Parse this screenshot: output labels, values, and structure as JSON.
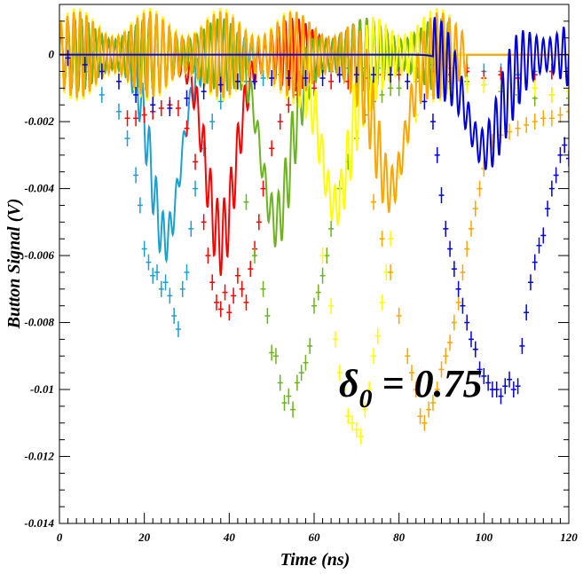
{
  "chart_data": {
    "type": "line",
    "xlabel": "Time (ns)",
    "ylabel": "Button Signal (V)",
    "xlim": [
      0,
      120
    ],
    "ylim": [
      -0.014,
      0.0015
    ],
    "x_ticks": [
      0,
      20,
      40,
      60,
      80,
      100,
      120
    ],
    "x_tick_labels": [
      "0",
      "20",
      "40",
      "60",
      "80",
      "100",
      "120"
    ],
    "y_ticks": [
      0,
      -0.002,
      -0.004,
      -0.006,
      -0.008,
      -0.01,
      -0.012,
      -0.014
    ],
    "y_tick_labels": [
      "0",
      "-0.002",
      "-0.004",
      "-0.006",
      "-0.008",
      "-0.01",
      "-0.012",
      "-0.014"
    ],
    "annotation": {
      "symbol": "δ",
      "subscript": "0",
      "rest": " = 0.75"
    },
    "series": [
      {
        "color": "#1f9fce",
        "measured": {
          "x": [
            6,
            10,
            14,
            16,
            18,
            19,
            20,
            21,
            22,
            23,
            24,
            25,
            26,
            27,
            28,
            29,
            30,
            31,
            32,
            34,
            36,
            38,
            40,
            44,
            48,
            52,
            56,
            60,
            64,
            68,
            72,
            76,
            80,
            84,
            88,
            92,
            96,
            100,
            104,
            108,
            112,
            116,
            120
          ],
          "y": [
            -0.0005,
            -0.0012,
            -0.0017,
            -0.0025,
            -0.0036,
            -0.0045,
            -0.0058,
            -0.0062,
            -0.0066,
            -0.0065,
            -0.007,
            -0.0068,
            -0.0072,
            -0.0078,
            -0.0082,
            -0.007,
            -0.0065,
            -0.0052,
            -0.004,
            -0.0028,
            -0.002,
            -0.0014,
            -0.001,
            -0.0008,
            -0.0007,
            -0.0006,
            -0.0006,
            -0.0005,
            -0.0005,
            -0.0004,
            -0.0004,
            -0.0004,
            -0.0004,
            -0.0004,
            -0.0003,
            -0.0004,
            -0.0004,
            -0.0005,
            -0.0005,
            -0.0006,
            -0.0005,
            -0.0005,
            -0.0004
          ]
        },
        "sim": {
          "dip_center": 25,
          "dip_depth": -0.0055,
          "dip_width": 5,
          "osc_start": 0,
          "osc_end": 48,
          "osc_amp": 0.0009,
          "osc_period": 1.6
        }
      },
      {
        "color": "#ff0000",
        "measured": {
          "x": [
            16,
            18,
            20,
            22,
            24,
            26,
            28,
            30,
            32,
            34,
            35,
            36,
            37,
            38,
            39,
            40,
            41,
            42,
            43,
            44,
            45,
            46,
            47,
            48,
            50,
            52,
            54,
            56,
            60,
            64,
            68,
            72,
            76,
            80,
            84,
            88,
            92,
            96,
            100,
            104,
            108,
            112,
            116,
            120
          ],
          "y": [
            -0.0019,
            -0.0019,
            -0.0018,
            -0.0017,
            -0.0016,
            -0.0015,
            -0.0016,
            -0.0022,
            -0.0032,
            -0.005,
            -0.006,
            -0.0068,
            -0.0074,
            -0.0076,
            -0.0071,
            -0.0077,
            -0.0072,
            -0.0066,
            -0.007,
            -0.0074,
            -0.0064,
            -0.0058,
            -0.005,
            -0.004,
            -0.0028,
            -0.002,
            -0.0015,
            -0.0012,
            -0.001,
            -0.0008,
            -0.0008,
            -0.0007,
            -0.0006,
            -0.0006,
            -0.0006,
            -0.0005,
            -0.0006,
            -0.0005,
            -0.0007,
            -0.0006,
            -0.0007,
            -0.0006,
            -0.0005,
            -0.0007
          ]
        },
        "sim": {
          "dip_center": 38,
          "dip_depth": -0.0055,
          "dip_width": 5,
          "osc_start": 0,
          "osc_end": 92,
          "osc_amp": 0.0011,
          "osc_period": 1.6
        }
      },
      {
        "color": "#6cb31f",
        "measured": {
          "x": [
            44,
            46,
            48,
            49,
            50,
            51,
            52,
            53,
            54,
            55,
            56,
            57,
            58,
            59,
            60,
            61,
            62,
            63,
            64,
            66,
            68,
            70,
            72,
            74,
            76,
            78,
            80,
            84,
            88,
            92,
            96,
            100,
            104,
            108,
            112,
            116,
            120
          ],
          "y": [
            -0.0044,
            -0.006,
            -0.007,
            -0.0078,
            -0.0089,
            -0.009,
            -0.0098,
            -0.0104,
            -0.0102,
            -0.0106,
            -0.0098,
            -0.0095,
            -0.0092,
            -0.0087,
            -0.0075,
            -0.0071,
            -0.0066,
            -0.006,
            -0.0052,
            -0.004,
            -0.0032,
            -0.0025,
            -0.0018,
            -0.0014,
            -0.0012,
            -0.001,
            -0.001,
            -0.0008,
            -0.0008,
            -0.0008,
            -0.0008,
            -0.0009,
            -0.0011,
            -0.0012,
            -0.0013,
            -0.0012,
            -0.0013
          ]
        },
        "sim": {
          "dip_center": 51,
          "dip_depth": -0.005,
          "dip_width": 5,
          "osc_start": 0,
          "osc_end": 92,
          "osc_amp": 0.0011,
          "osc_period": 1.6
        }
      },
      {
        "color": "#ffff00",
        "measured": {
          "x": [
            62,
            64,
            65,
            66,
            67,
            68,
            69,
            70,
            71,
            72,
            73,
            74,
            75,
            76,
            77,
            78,
            79,
            80,
            82,
            84,
            86,
            88,
            90,
            92,
            96,
            100,
            104,
            108,
            112,
            116,
            120
          ],
          "y": [
            -0.006,
            -0.0075,
            -0.0085,
            -0.0095,
            -0.01,
            -0.0108,
            -0.011,
            -0.0112,
            -0.0114,
            -0.0106,
            -0.01,
            -0.009,
            -0.0084,
            -0.0074,
            -0.0065,
            -0.0055,
            -0.0042,
            -0.0035,
            -0.0025,
            -0.0018,
            -0.0014,
            -0.0012,
            -0.001,
            -0.001,
            -0.0009,
            -0.0009,
            -0.001,
            -0.001,
            -0.001,
            -0.0012,
            -0.0011
          ]
        },
        "sim": {
          "dip_center": 65,
          "dip_depth": -0.0045,
          "dip_width": 5,
          "osc_start": 0,
          "osc_end": 92,
          "osc_amp": 0.0014,
          "osc_period": 1.5
        }
      },
      {
        "color": "#ffa500",
        "measured": {
          "x": [
            74,
            76,
            78,
            80,
            82,
            83,
            84,
            85,
            86,
            87,
            88,
            89,
            90,
            91,
            92,
            93,
            94,
            95,
            96,
            97,
            98,
            99,
            100,
            102,
            104,
            106,
            108,
            110,
            112,
            114,
            116,
            118,
            120
          ],
          "y": [
            -0.0044,
            -0.0055,
            -0.0065,
            -0.0078,
            -0.009,
            -0.0095,
            -0.01,
            -0.0108,
            -0.011,
            -0.0106,
            -0.0104,
            -0.01,
            -0.0094,
            -0.009,
            -0.0086,
            -0.008,
            -0.0074,
            -0.0065,
            -0.0058,
            -0.0052,
            -0.0046,
            -0.004,
            -0.0034,
            -0.0026,
            -0.0024,
            -0.0023,
            -0.0022,
            -0.0021,
            -0.002,
            -0.0019,
            -0.0019,
            -0.0018,
            -0.0017
          ]
        },
        "sim": {
          "dip_center": 78,
          "dip_depth": -0.004,
          "dip_width": 5,
          "osc_start": 0,
          "osc_end": 96,
          "osc_amp": 0.0013,
          "osc_period": 1.5
        }
      },
      {
        "color": "#0000dd",
        "measured": {
          "x": [
            2,
            6,
            10,
            14,
            18,
            22,
            26,
            30,
            34,
            38,
            42,
            46,
            50,
            54,
            58,
            62,
            66,
            70,
            74,
            78,
            82,
            86,
            88,
            89,
            90,
            91,
            92,
            93,
            94,
            95,
            96,
            97,
            98,
            99,
            100,
            101,
            102,
            103,
            104,
            105,
            106,
            107,
            108,
            109,
            110,
            111,
            112,
            113,
            114,
            115,
            116,
            117,
            118,
            119,
            120
          ],
          "y": [
            -0.0001,
            -0.0003,
            -0.0005,
            -0.0008,
            -0.0012,
            -0.0015,
            -0.0016,
            -0.0013,
            -0.0011,
            -0.0009,
            -0.0008,
            -0.0008,
            -0.0007,
            -0.0007,
            -0.0007,
            -0.0007,
            -0.0006,
            -0.0006,
            -0.0006,
            -0.0006,
            -0.0008,
            -0.0014,
            -0.002,
            -0.003,
            -0.0042,
            -0.0052,
            -0.0058,
            -0.0064,
            -0.007,
            -0.0075,
            -0.008,
            -0.0085,
            -0.0088,
            -0.0094,
            -0.0096,
            -0.0098,
            -0.01,
            -0.01,
            -0.0102,
            -0.0099,
            -0.0097,
            -0.01,
            -0.0099,
            -0.0087,
            -0.0077,
            -0.0068,
            -0.0062,
            -0.0057,
            -0.0054,
            -0.0046,
            -0.004,
            -0.0036,
            -0.003,
            -0.0027,
            -0.0031
          ]
        },
        "sim": {
          "dip_center": 100,
          "dip_depth": -0.0028,
          "dip_width": 6,
          "osc_start": 88,
          "osc_end": 120,
          "osc_amp": 0.0012,
          "osc_period": 1.6
        }
      }
    ]
  }
}
